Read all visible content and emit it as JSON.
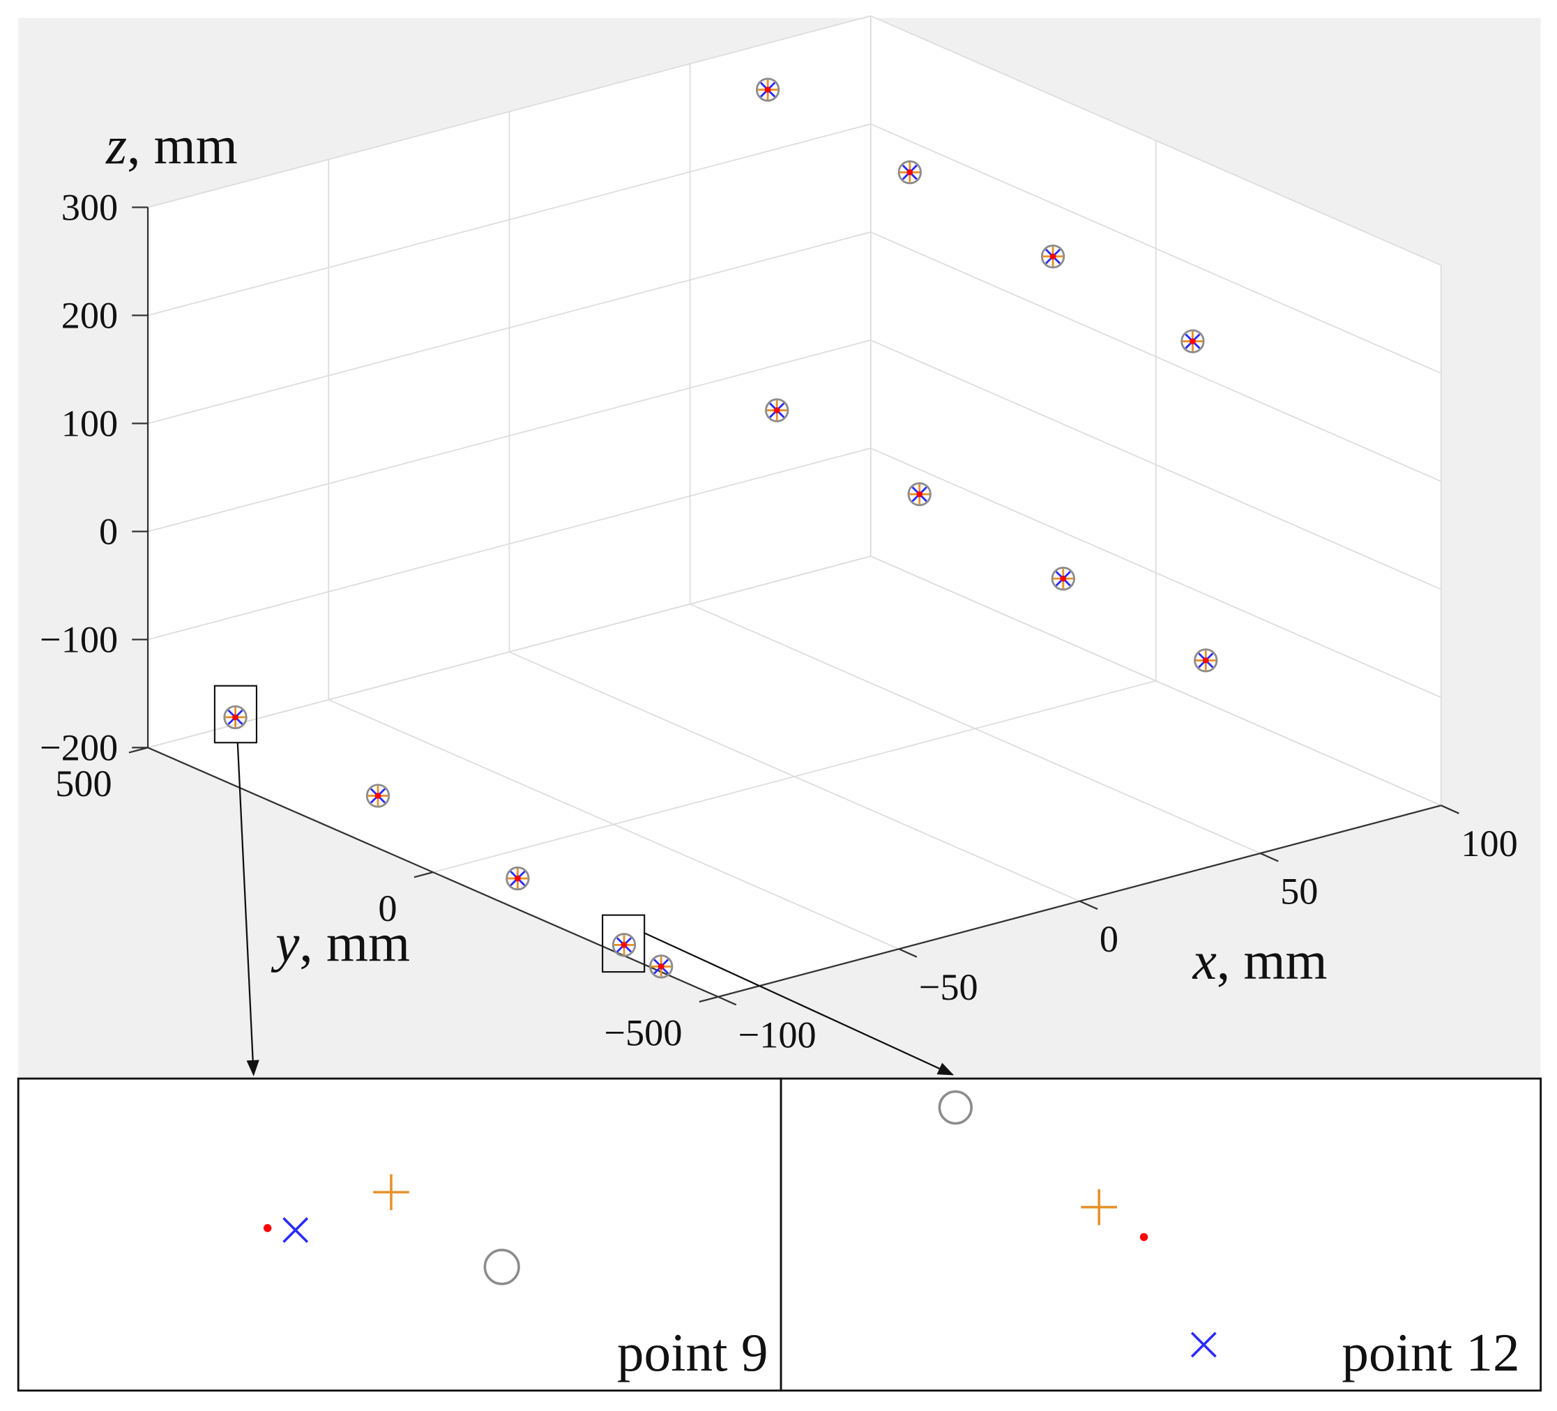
{
  "chart_data": {
    "type": "scatter3d",
    "xlabel": {
      "var": "x",
      "unit": ", mm"
    },
    "ylabel": {
      "var": "y",
      "unit": ", mm"
    },
    "zlabel": {
      "var": "z",
      "unit": ", mm"
    },
    "x": [
      -90,
      -90,
      -90,
      -100,
      -100,
      60,
      60,
      60,
      60,
      60,
      60,
      60,
      60
    ],
    "y": [
      410,
      160,
      -85,
      -335,
      -400,
      427,
      178,
      -73,
      -318,
      411,
      161,
      -91,
      -341
    ],
    "z": [
      -160,
      -175,
      -195,
      -190,
      -195,
      284,
      265,
      245,
      223,
      -9,
      -29,
      -49,
      -67
    ],
    "marker_colors": {
      "circle": "#8c8c8c",
      "plus": "#e5912a",
      "cross": "#2a2aff",
      "dot": "#ff0000"
    },
    "xlim": [
      -100,
      100
    ],
    "ylim": [
      -500,
      500
    ],
    "zlim": [
      -200,
      300
    ],
    "xticks": [
      {
        "value": -100,
        "label": "−100"
      },
      {
        "value": -50,
        "label": "−50"
      },
      0,
      50,
      100
    ],
    "yticks": [
      {
        "value": -500,
        "label": "−500"
      },
      0,
      500
    ],
    "zticks": [
      {
        "value": -200,
        "label": "−200"
      },
      {
        "value": -100,
        "label": "−100"
      },
      0,
      100,
      200,
      300
    ],
    "grid": true,
    "insets": [
      {
        "label": "point 9"
      },
      {
        "label": "point 12"
      }
    ]
  }
}
